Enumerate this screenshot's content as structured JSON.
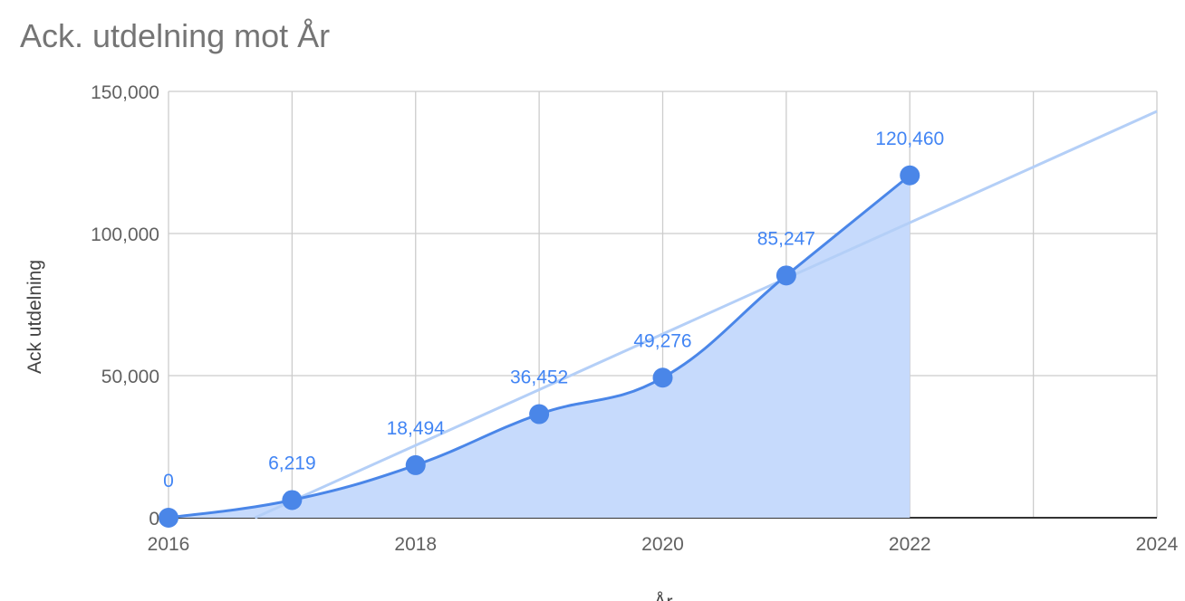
{
  "chart_data": {
    "type": "area",
    "title": "Ack. utdelning mot År",
    "xlabel": "År",
    "ylabel": "Ack utdelning",
    "xlim": [
      2016,
      2024
    ],
    "ylim": [
      0,
      150000
    ],
    "x_ticks": [
      "2016",
      "2018",
      "2020",
      "2022",
      "2024"
    ],
    "y_ticks": [
      "0",
      "50,000",
      "100,000",
      "150,000"
    ],
    "grid": true,
    "legend": "none",
    "series": [
      {
        "x": [
          2016,
          2017,
          2018,
          2019,
          2020,
          2021,
          2022
        ],
        "values": [
          0,
          6219,
          18494,
          36452,
          49276,
          85247,
          120460
        ],
        "labels": [
          "0",
          "6,219",
          "18,494",
          "36,452",
          "49,276",
          "85,247",
          "120,460"
        ]
      }
    ],
    "trendline": {
      "type": "linear",
      "start": [
        2016.7,
        0
      ],
      "end": [
        2024,
        143000
      ]
    },
    "colors": {
      "line": "#4a86e8",
      "area": "#c6dafc",
      "trend": "#b4cff7",
      "label": "#4285f4"
    }
  }
}
